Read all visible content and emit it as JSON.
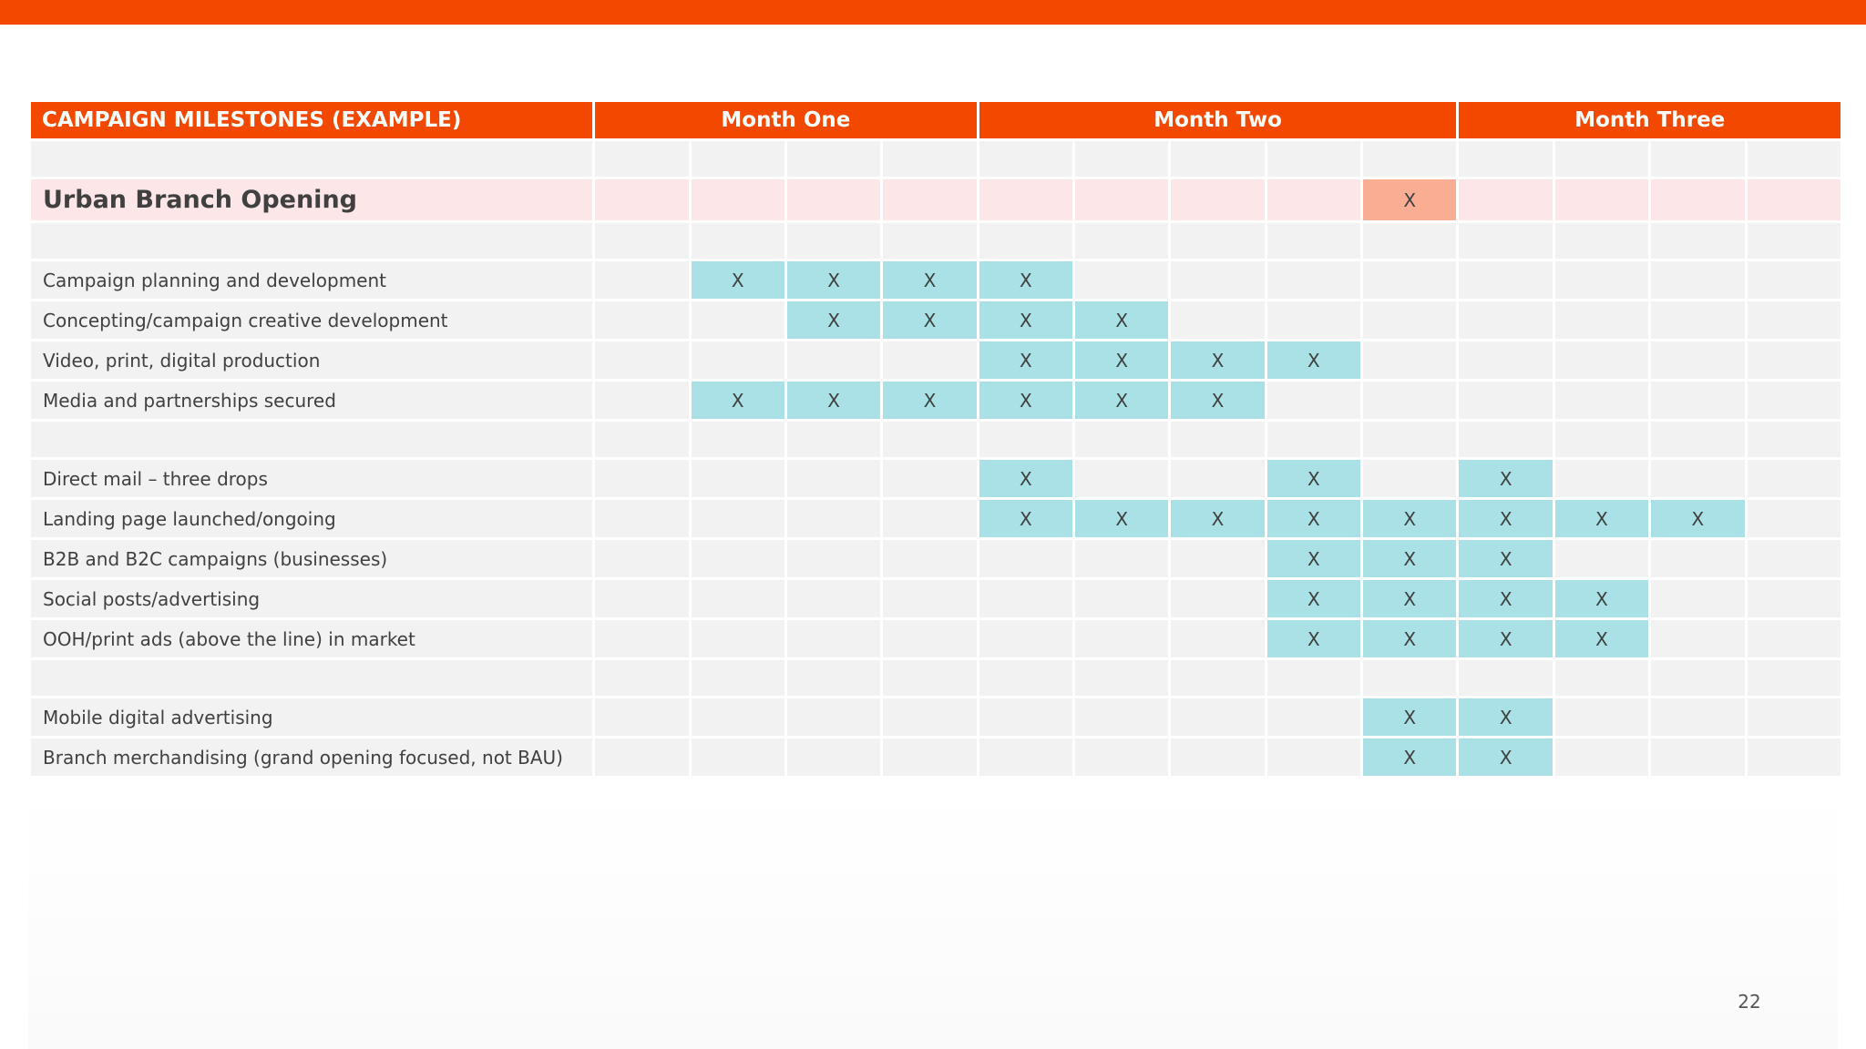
{
  "table": {
    "title": "CAMPAIGN MILESTONES (EXAMPLE)",
    "months": [
      "Month One",
      "Month Two",
      "Month Three"
    ],
    "month_week_counts": [
      4,
      5,
      4
    ],
    "mark": "X",
    "rows": [
      {
        "kind": "spacer",
        "label": "",
        "marks": []
      },
      {
        "kind": "section",
        "label": "Urban Branch Opening",
        "marks": [
          8
        ]
      },
      {
        "kind": "spacer",
        "label": "",
        "marks": []
      },
      {
        "kind": "task",
        "label": "Campaign planning and development",
        "marks": [
          1,
          2,
          3,
          4
        ]
      },
      {
        "kind": "task",
        "label": "Concepting/campaign creative development",
        "marks": [
          2,
          3,
          4,
          5
        ]
      },
      {
        "kind": "task",
        "label": "Video, print, digital production",
        "marks": [
          4,
          5,
          6,
          7
        ]
      },
      {
        "kind": "task",
        "label": "Media and partnerships secured",
        "marks": [
          1,
          2,
          3,
          4,
          5,
          6
        ]
      },
      {
        "kind": "spacer",
        "label": "",
        "marks": []
      },
      {
        "kind": "task",
        "label": "Direct mail – three drops",
        "marks": [
          4,
          7,
          9
        ]
      },
      {
        "kind": "task",
        "label": "Landing page launched/ongoing",
        "marks": [
          4,
          5,
          6,
          7,
          8,
          9,
          10,
          11
        ]
      },
      {
        "kind": "task",
        "label": "B2B and B2C campaigns (businesses)",
        "marks": [
          7,
          8,
          9
        ]
      },
      {
        "kind": "task",
        "label": "Social posts/advertising",
        "marks": [
          7,
          8,
          9,
          10
        ]
      },
      {
        "kind": "task",
        "label": "OOH/print ads (above the line) in market",
        "marks": [
          7,
          8,
          9,
          10
        ]
      },
      {
        "kind": "spacer",
        "label": "",
        "marks": []
      },
      {
        "kind": "task",
        "label": "Mobile digital advertising",
        "marks": [
          8,
          9
        ]
      },
      {
        "kind": "task",
        "label": "Branch merchandising (grand opening focused, not BAU)",
        "marks": [
          8,
          9
        ]
      }
    ]
  },
  "page_number": "22",
  "colors": {
    "accent_orange": "#f24800",
    "task_fill": "#a9e1e6",
    "section_fill": "#fde6e7",
    "section_mark_fill": "#f9ad93",
    "cell_bg": "#f2f2f3"
  }
}
